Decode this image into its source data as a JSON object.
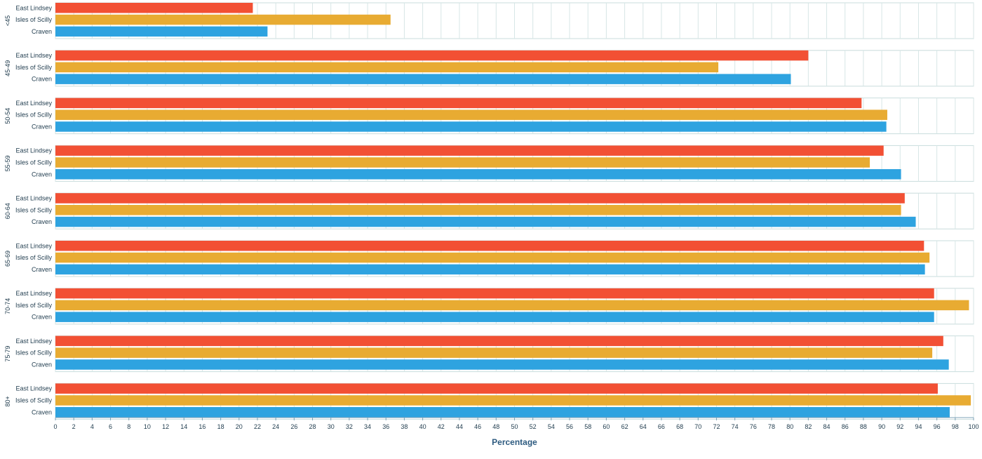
{
  "chart_data": {
    "type": "bar",
    "orientation": "horizontal",
    "xlabel": "Percentage",
    "xlim": [
      0,
      100
    ],
    "x_ticks": [
      0,
      2,
      4,
      6,
      8,
      10,
      12,
      14,
      16,
      18,
      20,
      22,
      24,
      26,
      28,
      30,
      32,
      34,
      36,
      38,
      40,
      42,
      44,
      46,
      48,
      50,
      52,
      54,
      56,
      58,
      60,
      62,
      64,
      66,
      68,
      70,
      72,
      74,
      76,
      78,
      80,
      82,
      84,
      86,
      88,
      90,
      92,
      94,
      96,
      98,
      100
    ],
    "groups": [
      "<45",
      "45-49",
      "50-54",
      "55-59",
      "60-64",
      "65-69",
      "70-74",
      "75-79",
      "80+"
    ],
    "series": [
      {
        "name": "East Lindsey",
        "color": "#f25034",
        "values": [
          21.5,
          82.0,
          87.8,
          90.2,
          92.5,
          94.6,
          95.7,
          96.7,
          96.1
        ]
      },
      {
        "name": "Isles of Scilly",
        "color": "#e8ab32",
        "values": [
          36.5,
          72.2,
          90.6,
          88.7,
          92.1,
          95.2,
          99.5,
          95.5,
          99.7
        ]
      },
      {
        "name": "Craven",
        "color": "#2ea3e0",
        "values": [
          23.1,
          80.1,
          90.5,
          92.1,
          93.7,
          94.7,
          95.7,
          97.3,
          97.4
        ]
      }
    ],
    "grid": true
  }
}
